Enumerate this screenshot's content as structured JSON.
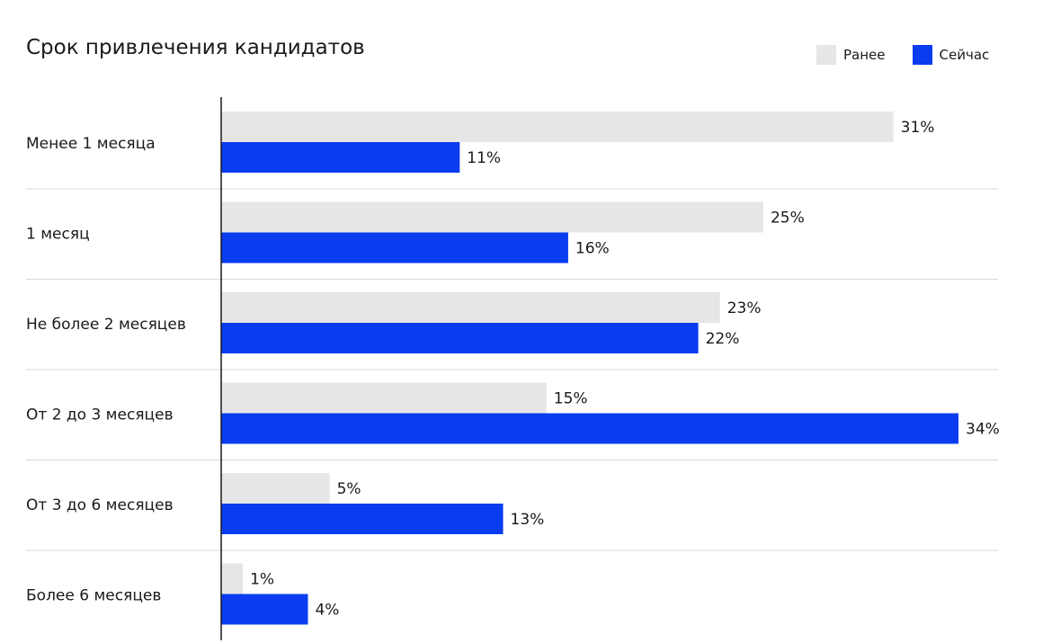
{
  "title": "Срок привлечения кандидатов",
  "legend": [
    {
      "label": "Ранее",
      "color": "#e6e6e6"
    },
    {
      "label": "Сейчас",
      "color": "#0a3cf0"
    }
  ],
  "chart_data": {
    "type": "bar",
    "orientation": "horizontal",
    "title": "Срок привлечения кандидатов",
    "categories": [
      "Менее 1 месяца",
      "1 месяц",
      "Не более 2 месяцев",
      "От 2 до 3 месяцев",
      "От 3 до 6 месяцев",
      "Более 6 месяцев"
    ],
    "series": [
      {
        "name": "Ранее",
        "values": [
          31,
          25,
          23,
          15,
          5,
          1
        ],
        "labels": [
          "31%",
          "25%",
          "23%",
          "15%",
          "5%",
          "1%"
        ],
        "color": "#e6e6e6"
      },
      {
        "name": "Сейчас",
        "values": [
          11,
          16,
          22,
          34,
          13,
          4
        ],
        "labels": [
          "11%",
          "16%",
          "22%",
          "34%",
          "13%",
          "4%"
        ],
        "color": "#0a3cf0"
      }
    ],
    "unit": "%",
    "xlim": [
      0,
      34
    ],
    "grid": false,
    "legend_position": "top-right"
  }
}
